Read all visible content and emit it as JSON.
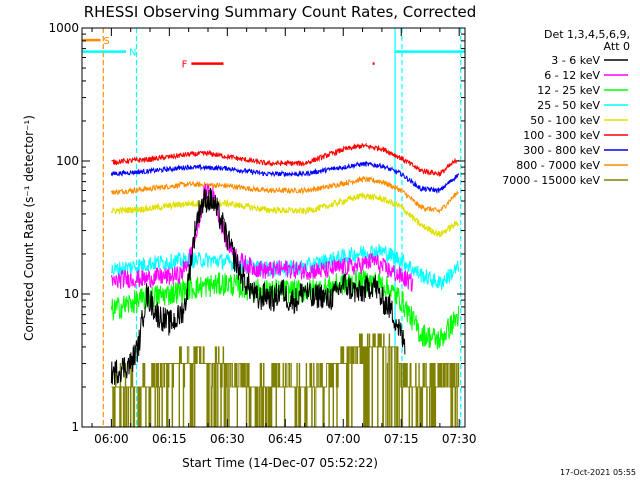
{
  "chart_data": {
    "type": "line",
    "title": "RHESSI Observing Summary Count Rates, Corrected",
    "xlabel": "Start Time (14-Dec-07 05:52:22)",
    "ylabel": "Corrected Count Rate (s⁻¹ detector⁻¹)",
    "x_unit": "minutes since 06:00",
    "xlim": [
      -7.6,
      91.5
    ],
    "ylim": [
      1,
      1000
    ],
    "yscale": "log",
    "x_ticks": [
      {
        "value": 0,
        "label": "06:00"
      },
      {
        "value": 15,
        "label": "06:15"
      },
      {
        "value": 30,
        "label": "06:30"
      },
      {
        "value": 45,
        "label": "06:45"
      },
      {
        "value": 60,
        "label": "07:00"
      },
      {
        "value": 75,
        "label": "07:15"
      },
      {
        "value": 90,
        "label": "07:30"
      }
    ],
    "y_ticks": [
      {
        "value": 1,
        "label": "1"
      },
      {
        "value": 10,
        "label": "10"
      },
      {
        "value": 100,
        "label": "100"
      },
      {
        "value": 1000,
        "label": "1000"
      }
    ],
    "legend": {
      "placement": "right",
      "header": [
        "Det 1,3,4,5,6,9,",
        "Att 0"
      ]
    },
    "series": [
      {
        "name": "3 - 6 keV",
        "color": "#000000",
        "noise": 0.1,
        "x": [
          0,
          5,
          7,
          9,
          12,
          15,
          17,
          19,
          20,
          21,
          22,
          23,
          24,
          25,
          26,
          27,
          28,
          29,
          30,
          32,
          34,
          36,
          38,
          40,
          42,
          44,
          46,
          48,
          50,
          52,
          54,
          56,
          58,
          60,
          62,
          64,
          66,
          68,
          70,
          72,
          74,
          76
        ],
        "y": [
          2.5,
          3,
          4,
          10,
          7,
          6,
          6.5,
          8,
          13,
          22,
          35,
          45,
          50,
          52,
          50,
          45,
          38,
          32,
          26,
          18,
          13,
          11,
          9,
          10,
          9,
          11,
          9,
          9,
          11,
          9,
          10,
          9,
          10,
          12,
          11,
          10,
          11,
          12,
          9,
          8,
          6,
          4
        ]
      },
      {
        "name": "6 - 12 keV",
        "color": "#ff00ff",
        "noise": 0.07,
        "x": [
          0,
          3,
          6,
          9,
          12,
          15,
          18,
          20,
          22,
          23,
          24,
          25,
          26,
          27,
          28,
          29,
          30,
          33,
          36,
          40,
          45,
          50,
          55,
          60,
          63,
          66,
          68,
          70,
          72,
          74,
          76,
          78
        ],
        "y": [
          12,
          13,
          13,
          13,
          13.5,
          13.5,
          14,
          18,
          28,
          40,
          55,
          62,
          58,
          48,
          38,
          30,
          24,
          18,
          16,
          15,
          15.5,
          15,
          15,
          16,
          16,
          17,
          18,
          16,
          15,
          14,
          13,
          12
        ]
      },
      {
        "name": "12 - 25 keV",
        "color": "#00ff00",
        "noise": 0.09,
        "x": [
          0,
          5,
          10,
          15,
          20,
          25,
          30,
          35,
          40,
          45,
          50,
          55,
          60,
          65,
          70,
          75,
          80,
          85,
          90
        ],
        "y": [
          7.5,
          8.5,
          9.5,
          10,
          11,
          11.5,
          12,
          11,
          10.5,
          10.5,
          10.5,
          11,
          12,
          12.5,
          12,
          9,
          5,
          4.5,
          7
        ]
      },
      {
        "name": "25 - 50 keV",
        "color": "#00ffff",
        "noise": 0.06,
        "x": [
          0,
          5,
          10,
          15,
          20,
          25,
          30,
          35,
          40,
          45,
          50,
          55,
          60,
          65,
          70,
          75,
          80,
          85,
          90
        ],
        "y": [
          15,
          16,
          17,
          17.5,
          18,
          18,
          17.5,
          16,
          15.5,
          15.5,
          16,
          17.5,
          19,
          20.5,
          21,
          18,
          14,
          12,
          16
        ]
      },
      {
        "name": "50 - 100 keV",
        "color": "#e0e000",
        "noise": 0.025,
        "x": [
          0,
          10,
          20,
          30,
          40,
          50,
          55,
          60,
          65,
          70,
          75,
          80,
          85,
          90
        ],
        "y": [
          42,
          44,
          48,
          48,
          43,
          42,
          45,
          50,
          55,
          52,
          45,
          33,
          28,
          35
        ]
      },
      {
        "name": "100 - 300 keV",
        "color": "#ff0000",
        "noise": 0.02,
        "x": [
          0,
          10,
          20,
          25,
          30,
          40,
          50,
          55,
          60,
          65,
          70,
          75,
          80,
          85,
          90
        ],
        "y": [
          98,
          103,
          112,
          114,
          108,
          96,
          96,
          108,
          122,
          130,
          124,
          105,
          85,
          80,
          105
        ]
      },
      {
        "name": "300 - 800 keV",
        "color": "#0000ff",
        "noise": 0.018,
        "x": [
          0,
          10,
          20,
          30,
          40,
          50,
          55,
          60,
          65,
          70,
          75,
          80,
          85,
          90
        ],
        "y": [
          80,
          84,
          90,
          88,
          80,
          80,
          85,
          90,
          95,
          92,
          80,
          62,
          60,
          80
        ]
      },
      {
        "name": "800 - 7000 keV",
        "color": "#ff8c00",
        "noise": 0.02,
        "x": [
          0,
          10,
          20,
          30,
          40,
          50,
          55,
          60,
          65,
          70,
          75,
          80,
          85,
          90
        ],
        "y": [
          58,
          62,
          67,
          65,
          60,
          60,
          63,
          68,
          73,
          70,
          60,
          45,
          42,
          60
        ]
      },
      {
        "name": "7000 - 15000 keV",
        "color": "#808000",
        "noise": 0.0,
        "style": "step",
        "x": [
          0,
          8,
          15,
          22,
          30,
          38,
          45,
          52,
          60,
          68,
          73,
          78,
          85,
          90
        ],
        "y": [
          2,
          2,
          3,
          3.5,
          3,
          2,
          2.5,
          2,
          3.5,
          4.5,
          4,
          2,
          2.5,
          3
        ]
      }
    ],
    "annotations": {
      "vertical_lines": [
        {
          "x": -2.1,
          "color": "#ff8c00",
          "style": "dashed"
        },
        {
          "x": 6.5,
          "color": "#00ffff",
          "style": "dashed"
        },
        {
          "x": 73.4,
          "color": "#00ffff",
          "style": "solid"
        },
        {
          "x": 75.2,
          "color": "#00ffff",
          "style": "dashed"
        },
        {
          "x": 90.4,
          "color": "#00ffff",
          "style": "dashed"
        }
      ],
      "bars": [
        {
          "label": "S",
          "color": "#ff8c00",
          "x0": -7.6,
          "x1": -2.8,
          "y": 810
        },
        {
          "label": "N",
          "color": "#00ffff",
          "x0": -7.6,
          "x1": 3.8,
          "y": 665
        },
        {
          "label": "",
          "color": "#00ffff",
          "x0": 73.4,
          "x1": 91.5,
          "y": 665
        },
        {
          "label": "F",
          "color": "#ff0000",
          "x0": 20.7,
          "x1": 29.0,
          "y": 540
        },
        {
          "label": "",
          "color": "#ff0000",
          "x0": 67.6,
          "x1": 68.1,
          "y": 540
        }
      ]
    }
  },
  "stamp": "17-Oct-2021 05:55"
}
